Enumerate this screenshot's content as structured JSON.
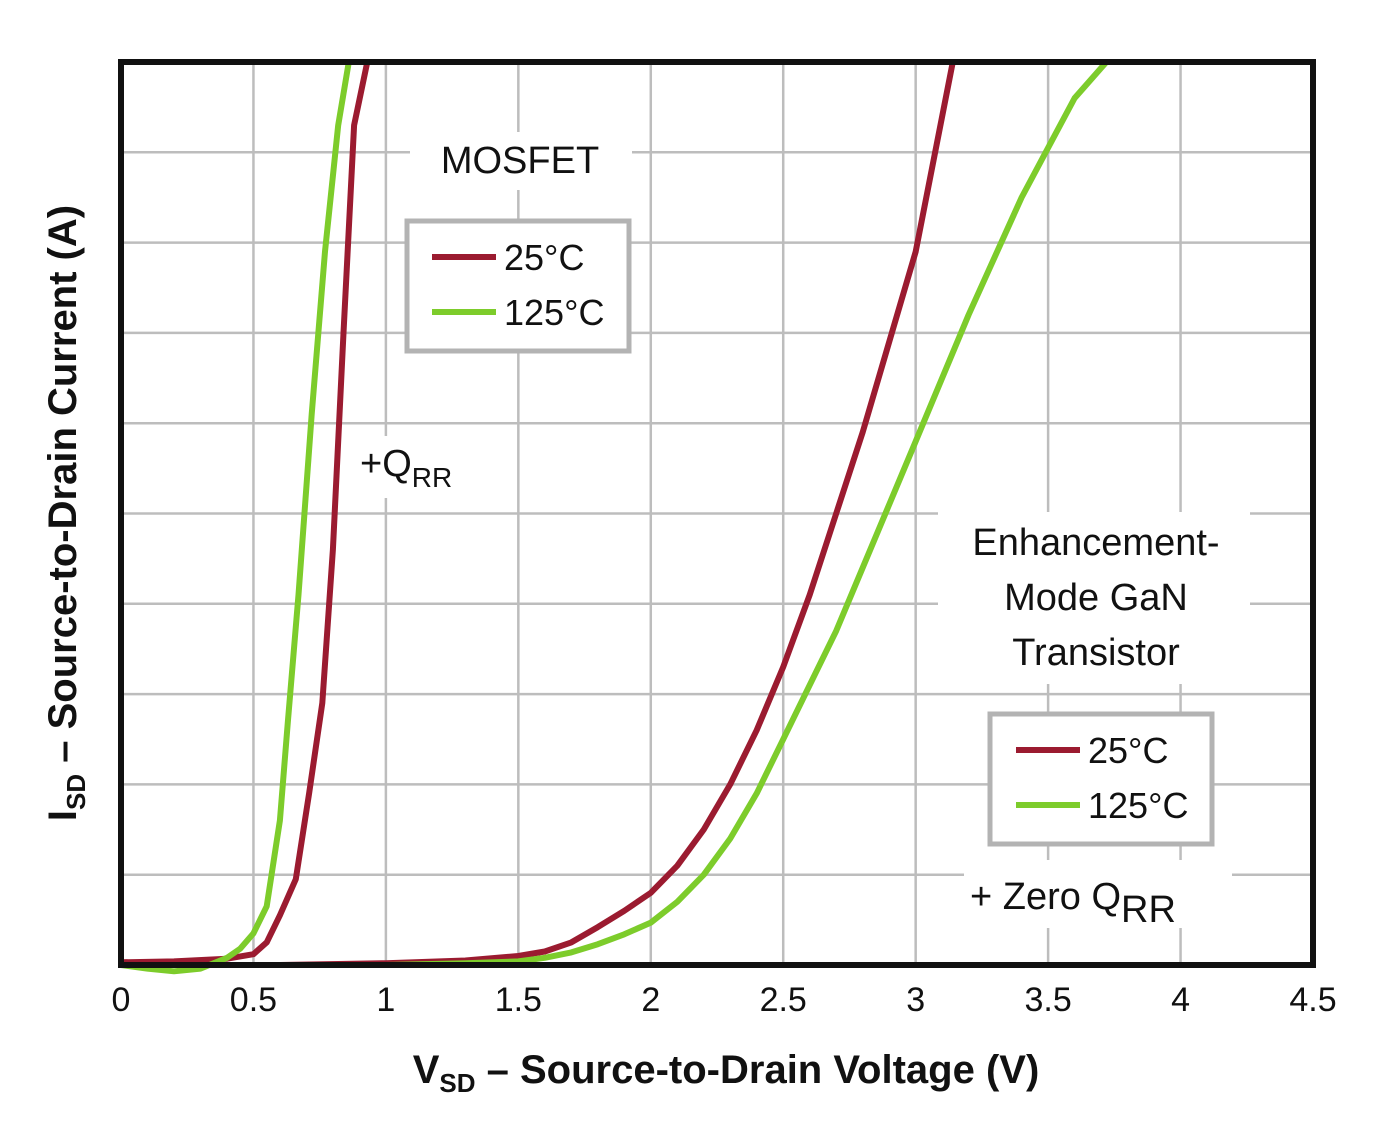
{
  "chart_data": {
    "type": "line",
    "xlabel_main": "V",
    "xlabel_sub": "SD",
    "xlabel_rest": " – Source-to-Drain Voltage (V)",
    "ylabel_main": "I",
    "ylabel_sub": "SD",
    "ylabel_rest": " – Source-to-Drain Current (A)",
    "xlim": [
      0,
      4.5
    ],
    "ylim": [
      0,
      10
    ],
    "x_ticks": [
      "0",
      "0.5",
      "1",
      "1.5",
      "2",
      "2.5",
      "3",
      "3.5",
      "4",
      "4.5"
    ],
    "y_ticks_labeled": false,
    "grid": true,
    "colors": {
      "t25": "#9b1b30",
      "t125": "#7dcc2b",
      "legend_border": "#b3b3b3",
      "grid": "#bdbdbd"
    },
    "groups": {
      "mosfet": {
        "title": "MOSFET",
        "note_main": "+Q",
        "note_sub": "RR",
        "legend": [
          "25°C",
          "125°C"
        ]
      },
      "gan": {
        "title_lines": [
          "Enhancement-",
          "Mode GaN",
          "Transistor"
        ],
        "note_main": "+ Zero Q",
        "note_sub": "RR",
        "legend": [
          "25°C",
          "125°C"
        ]
      }
    },
    "series": [
      {
        "group": "mosfet",
        "temp": "25°C",
        "color": "#9b1b30",
        "x": [
          0,
          0.2,
          0.4,
          0.5,
          0.55,
          0.6,
          0.66,
          0.71,
          0.76,
          0.8,
          0.84,
          0.88,
          0.93
        ],
        "y": [
          0.03,
          0.04,
          0.07,
          0.12,
          0.25,
          0.55,
          0.95,
          1.9,
          2.9,
          4.6,
          7.0,
          9.3,
          10.0
        ]
      },
      {
        "group": "mosfet",
        "temp": "125°C",
        "color": "#7dcc2b",
        "x": [
          0,
          0.1,
          0.2,
          0.3,
          0.4,
          0.45,
          0.5,
          0.55,
          0.6,
          0.63,
          0.67,
          0.72,
          0.77,
          0.82,
          0.86
        ],
        "y": [
          0.0,
          -0.04,
          -0.07,
          -0.04,
          0.08,
          0.18,
          0.35,
          0.65,
          1.6,
          2.7,
          4.1,
          6.1,
          7.9,
          9.3,
          10.0
        ]
      },
      {
        "group": "gan",
        "temp": "25°C",
        "color": "#9b1b30",
        "x": [
          0.6,
          1.0,
          1.3,
          1.5,
          1.6,
          1.7,
          1.8,
          1.9,
          2.0,
          2.1,
          2.2,
          2.3,
          2.4,
          2.5,
          2.6,
          2.7,
          2.8,
          2.9,
          3.0,
          3.14
        ],
        "y": [
          0.0,
          0.02,
          0.05,
          0.1,
          0.15,
          0.25,
          0.42,
          0.6,
          0.8,
          1.1,
          1.5,
          2.0,
          2.6,
          3.3,
          4.1,
          5.0,
          5.9,
          6.9,
          7.9,
          10.0
        ]
      },
      {
        "group": "gan",
        "temp": "125°C",
        "color": "#7dcc2b",
        "x": [
          1.0,
          1.3,
          1.5,
          1.6,
          1.7,
          1.8,
          1.9,
          2.0,
          2.1,
          2.2,
          2.3,
          2.4,
          2.5,
          2.6,
          2.7,
          2.8,
          2.9,
          3.0,
          3.2,
          3.4,
          3.6,
          3.72
        ],
        "y": [
          0.0,
          0.02,
          0.04,
          0.08,
          0.14,
          0.23,
          0.34,
          0.47,
          0.7,
          1.0,
          1.4,
          1.9,
          2.5,
          3.1,
          3.7,
          4.4,
          5.1,
          5.8,
          7.2,
          8.5,
          9.6,
          10.0
        ]
      }
    ]
  }
}
